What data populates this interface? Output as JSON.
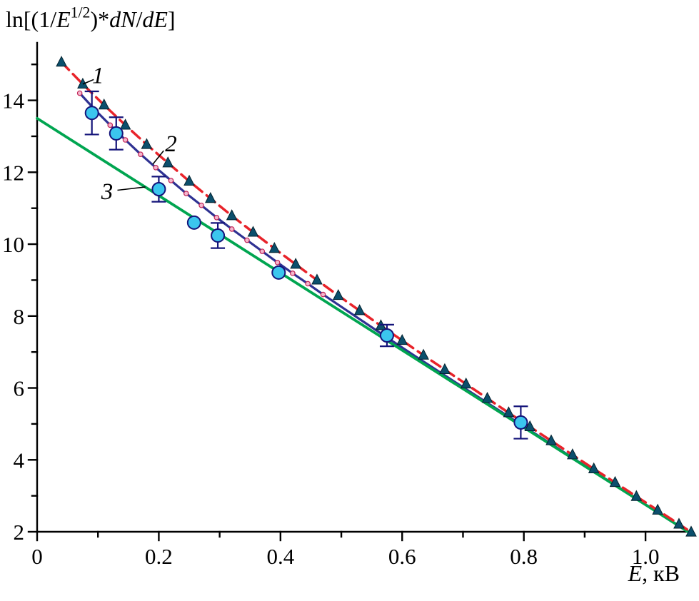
{
  "figure": {
    "background": "#ffffff",
    "text_color": "#000000"
  },
  "chart_data": {
    "type": "line",
    "title": "",
    "ylabel": "ln[(1/E^(1/2))*dN/dE]",
    "ylabel_segments": [
      {
        "t": "ln[(1/"
      },
      {
        "t": "E",
        "i": true
      },
      {
        "t": "1/2",
        "sup": true
      },
      {
        "t": ")*"
      },
      {
        "t": "dN",
        "i": true
      },
      {
        "t": "/"
      },
      {
        "t": "dE",
        "i": true
      },
      {
        "t": "]"
      }
    ],
    "xlabel": "E, кВ",
    "xlabel_segments": [
      {
        "t": "E",
        "i": true
      },
      {
        "t": ", кВ"
      }
    ],
    "xlim": [
      0,
      1.075
    ],
    "ylim": [
      2,
      15.6
    ],
    "grid": false,
    "legend_position": "none",
    "axes_color": "#000000",
    "x_ticks": {
      "major": [
        0,
        0.2,
        0.4,
        0.6,
        0.8,
        1.0
      ],
      "labels": [
        "0",
        "0.2",
        "0.4",
        "0.6",
        "0.8",
        "1.0"
      ],
      "minor": [
        0.1,
        0.3,
        0.5,
        0.7,
        0.9
      ]
    },
    "y_ticks": {
      "major": [
        2,
        4,
        6,
        8,
        10,
        12,
        14
      ],
      "labels": [
        "2",
        "4",
        "6",
        "8",
        "10",
        "12",
        "14"
      ],
      "minor": [
        3,
        5,
        7,
        9,
        11,
        13,
        15
      ]
    },
    "series": [
      {
        "label": "2",
        "name": "blue-curve",
        "color": "#2E3192",
        "width": 3.2,
        "dash": null,
        "marker": "dot",
        "marker_color": "#F2B7CE",
        "marker_edge": "#C22355",
        "marker_size": 3.2,
        "marker_max_x": 0.48,
        "points": [
          [
            0.07,
            14.2
          ],
          [
            0.095,
            13.74
          ],
          [
            0.12,
            13.31
          ],
          [
            0.145,
            12.9
          ],
          [
            0.17,
            12.5
          ],
          [
            0.195,
            12.13
          ],
          [
            0.22,
            11.77
          ],
          [
            0.245,
            11.41
          ],
          [
            0.27,
            11.08
          ],
          [
            0.295,
            10.74
          ],
          [
            0.32,
            10.42
          ],
          [
            0.345,
            10.11
          ],
          [
            0.37,
            9.8
          ],
          [
            0.395,
            9.49
          ],
          [
            0.42,
            9.19
          ],
          [
            0.445,
            8.9
          ],
          [
            0.47,
            8.6
          ],
          [
            0.52,
            8.03
          ],
          [
            0.57,
            7.46
          ],
          [
            0.62,
            6.9
          ],
          [
            0.7,
            6.02
          ],
          [
            0.8,
            4.93
          ],
          [
            0.9,
            3.84
          ],
          [
            1.0,
            2.76
          ],
          [
            1.07,
            2.0
          ]
        ]
      },
      {
        "label": "3",
        "name": "green-line",
        "color": "#00A550",
        "width": 3.8,
        "dash": null,
        "marker": null,
        "points": [
          [
            0,
            13.5
          ],
          [
            1.07,
            2.0
          ]
        ]
      },
      {
        "label": "1",
        "name": "red-dashed-curve",
        "color": "#E8232A",
        "width": 3.5,
        "dash": [
          15,
          8
        ],
        "marker": "triangle",
        "marker_color": "#0B4F6C",
        "marker_edge": "#03222F",
        "marker_size": 7,
        "marker_max_x": 1.08,
        "points": [
          [
            0.04,
            15.06
          ],
          [
            0.075,
            14.45
          ],
          [
            0.11,
            13.87
          ],
          [
            0.145,
            13.31
          ],
          [
            0.18,
            12.77
          ],
          [
            0.215,
            12.26
          ],
          [
            0.25,
            11.75
          ],
          [
            0.285,
            11.27
          ],
          [
            0.32,
            10.79
          ],
          [
            0.355,
            10.33
          ],
          [
            0.39,
            9.88
          ],
          [
            0.425,
            9.44
          ],
          [
            0.46,
            9.0
          ],
          [
            0.495,
            8.57
          ],
          [
            0.53,
            8.15
          ],
          [
            0.565,
            7.73
          ],
          [
            0.6,
            7.32
          ],
          [
            0.635,
            6.91
          ],
          [
            0.67,
            6.51
          ],
          [
            0.705,
            6.11
          ],
          [
            0.74,
            5.71
          ],
          [
            0.775,
            5.31
          ],
          [
            0.81,
            4.92
          ],
          [
            0.845,
            4.53
          ],
          [
            0.88,
            4.14
          ],
          [
            0.915,
            3.75
          ],
          [
            0.95,
            3.37
          ],
          [
            0.985,
            2.98
          ],
          [
            1.02,
            2.6
          ],
          [
            1.055,
            2.21
          ],
          [
            1.075,
            1.99
          ]
        ]
      }
    ],
    "data_points": {
      "name": "cyan-measured-points",
      "color": "#3BC6EE",
      "edge": "#14147A",
      "size": 9,
      "error_color": "#14147A",
      "points": [
        [
          0.09,
          13.65,
          0.6
        ],
        [
          0.13,
          13.08,
          0.45
        ],
        [
          0.2,
          11.53,
          0.35
        ],
        [
          0.258,
          10.6,
          0
        ],
        [
          0.297,
          10.24,
          0.35
        ],
        [
          0.397,
          9.21,
          0
        ],
        [
          0.575,
          7.46,
          0.3
        ],
        [
          0.795,
          5.04,
          0.45
        ]
      ]
    },
    "annotations": [
      {
        "text": "1",
        "x": 0.1,
        "y": 14.7,
        "leader": [
          0.093,
          14.58,
          0.075,
          14.45
        ]
      },
      {
        "text": "2",
        "x": 0.22,
        "y": 12.8,
        "leader": [
          0.208,
          12.6,
          0.19,
          12.22
        ]
      },
      {
        "text": "3",
        "x": 0.115,
        "y": 11.47,
        "leader": [
          0.132,
          11.5,
          0.178,
          11.59
        ]
      }
    ]
  }
}
